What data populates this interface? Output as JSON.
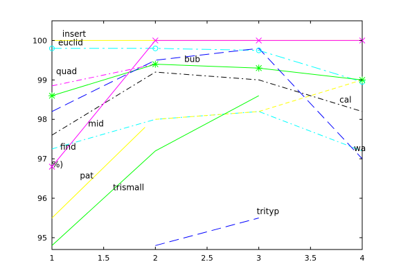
{
  "chart_data": {
    "type": "line",
    "title": "",
    "xlabel": "",
    "ylabel": "",
    "xlim": [
      1,
      4
    ],
    "ylim": [
      94.7,
      100.5
    ],
    "xticks": [
      1,
      1.5,
      2,
      2.5,
      3,
      3.5,
      4
    ],
    "xtick_labels": [
      "1",
      "1.5",
      "2",
      "2.5",
      "3",
      "3.5",
      "4"
    ],
    "yticks": [
      95,
      96,
      97,
      98,
      99,
      100
    ],
    "ytick_labels": [
      "95",
      "96",
      "97",
      "98",
      "99",
      "100"
    ],
    "grid": false,
    "legend": "none",
    "series": [
      {
        "name": "insert",
        "color": "#ffff00",
        "dash": "solid",
        "marker": "none",
        "x": [
          1,
          2,
          3,
          4
        ],
        "y": [
          100,
          100,
          100,
          100
        ]
      },
      {
        "name": "euclid",
        "color": "#00ffff",
        "dash": "dashdot-long",
        "marker": "circle",
        "x": [
          1,
          2,
          3,
          4
        ],
        "y": [
          99.8,
          99.8,
          99.75,
          98.95
        ]
      },
      {
        "name": "quad",
        "color": "#ff00ff",
        "dash": "dashdot",
        "marker": "none",
        "x": [
          1,
          2
        ],
        "y": [
          98.85,
          99.4
        ]
      },
      {
        "name": "bub",
        "color": "#00ff00",
        "dash": "solid",
        "marker": "star",
        "x": [
          1,
          2,
          3,
          4
        ],
        "y": [
          98.6,
          99.4,
          99.3,
          99.0
        ]
      },
      {
        "name": "",
        "color": "#0000ff",
        "dash": "longdash",
        "marker": "none",
        "x": [
          1,
          2,
          3,
          4
        ],
        "y": [
          98.2,
          99.5,
          99.8,
          97.0
        ]
      },
      {
        "name": "cal",
        "color": "#000000",
        "dash": "dashdot",
        "marker": "none",
        "x": [
          1,
          2,
          3,
          4
        ],
        "y": [
          97.6,
          99.2,
          99.0,
          98.2
        ]
      },
      {
        "name": "mid",
        "color": "#ff00ff",
        "dash": "solid",
        "marker": "x",
        "x": [
          1,
          2,
          3,
          4
        ],
        "y": [
          96.8,
          100,
          100,
          100
        ]
      },
      {
        "name": "find",
        "color": "#00ffff",
        "dash": "dashdot",
        "marker": "none",
        "x": [
          1,
          2,
          3,
          4
        ],
        "y": [
          97.25,
          98.0,
          98.2,
          97.2
        ]
      },
      {
        "name": "wa",
        "color": "#ffff00",
        "dash": "dashed",
        "marker": "none",
        "x": [
          2,
          3,
          4
        ],
        "y": [
          98.0,
          98.2,
          99.0
        ]
      },
      {
        "name": "pat",
        "color": "#ffff00",
        "dash": "solid",
        "marker": "none",
        "x": [
          1,
          1.9
        ],
        "y": [
          95.5,
          97.8
        ]
      },
      {
        "name": "trismall",
        "color": "#00ff00",
        "dash": "solid",
        "marker": "none",
        "x": [
          1,
          2,
          3
        ],
        "y": [
          94.8,
          97.2,
          98.6
        ]
      },
      {
        "name": "trityp",
        "color": "#0000ff",
        "dash": "longdash",
        "marker": "none",
        "x": [
          2,
          3
        ],
        "y": [
          94.8,
          95.5
        ]
      }
    ],
    "annotations": [
      {
        "text": "insert",
        "x": 1.1,
        "y": 100.1
      },
      {
        "text": "euclid",
        "x": 1.06,
        "y": 99.88
      },
      {
        "text": "quad",
        "x": 1.04,
        "y": 99.15
      },
      {
        "text": "bub",
        "x": 2.28,
        "y": 99.45
      },
      {
        "text": "cal",
        "x": 3.78,
        "y": 98.43
      },
      {
        "text": "mid",
        "x": 1.35,
        "y": 97.82
      },
      {
        "text": "find",
        "x": 1.08,
        "y": 97.23
      },
      {
        "text": "wa",
        "x": 3.92,
        "y": 97.2
      },
      {
        "text": "%)",
        "x": 1.0,
        "y": 96.78
      },
      {
        "text": "pat",
        "x": 1.27,
        "y": 96.5
      },
      {
        "text": "trismall",
        "x": 1.59,
        "y": 96.2
      },
      {
        "text": "trityp",
        "x": 2.98,
        "y": 95.6
      }
    ]
  }
}
